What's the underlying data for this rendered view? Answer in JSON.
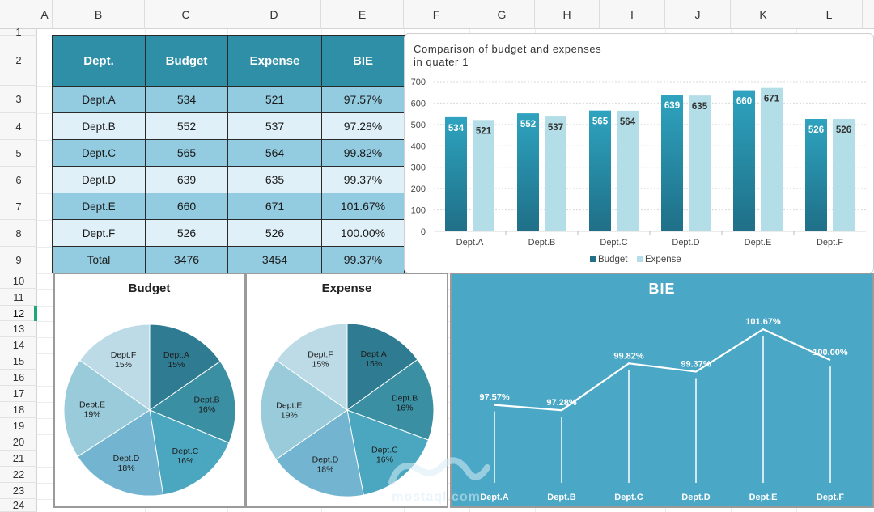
{
  "sheet": {
    "columns": [
      "A",
      "B",
      "C",
      "D",
      "E",
      "F",
      "G",
      "H",
      "I",
      "J",
      "K",
      "L"
    ],
    "rows": [
      "1",
      "2",
      "3",
      "4",
      "5",
      "6",
      "7",
      "8",
      "9",
      "10",
      "11",
      "12",
      "13",
      "14",
      "15",
      "16",
      "17",
      "18",
      "19",
      "20",
      "21",
      "22",
      "23",
      "24"
    ],
    "active_row": "12"
  },
  "table": {
    "headers": [
      "Dept.",
      "Budget",
      "Expense",
      "BIE"
    ],
    "rows": [
      {
        "dept": "Dept.A",
        "budget": "534",
        "expense": "521",
        "bie": "97.57%"
      },
      {
        "dept": "Dept.B",
        "budget": "552",
        "expense": "537",
        "bie": "97.28%"
      },
      {
        "dept": "Dept.C",
        "budget": "565",
        "expense": "564",
        "bie": "99.82%"
      },
      {
        "dept": "Dept.D",
        "budget": "639",
        "expense": "635",
        "bie": "99.37%"
      },
      {
        "dept": "Dept.E",
        "budget": "660",
        "expense": "671",
        "bie": "101.67%"
      },
      {
        "dept": "Dept.F",
        "budget": "526",
        "expense": "526",
        "bie": "100.00%"
      }
    ],
    "total": {
      "dept": "Total",
      "budget": "3476",
      "expense": "3454",
      "bie": "99.37%"
    }
  },
  "chart_data": [
    {
      "type": "bar",
      "title": "Comparison of budget and expenses\nin quater 1",
      "categories": [
        "Dept.A",
        "Dept.B",
        "Dept.C",
        "Dept.D",
        "Dept.E",
        "Dept.F"
      ],
      "series": [
        {
          "name": "Budget",
          "values": [
            534,
            552,
            565,
            639,
            660,
            526
          ],
          "color": "#2a8aa3"
        },
        {
          "name": "Expense",
          "values": [
            521,
            537,
            564,
            635,
            671,
            526
          ],
          "color": "#b3dde7"
        }
      ],
      "ylim": [
        0,
        700
      ],
      "yticks": [
        0,
        100,
        200,
        300,
        400,
        500,
        600,
        700
      ],
      "grid": true,
      "legend": "bottom"
    },
    {
      "type": "pie",
      "title": "Budget",
      "labels": [
        "Dept.A",
        "Dept.B",
        "Dept.C",
        "Dept.D",
        "Dept.E",
        "Dept.F"
      ],
      "values": [
        534,
        552,
        565,
        639,
        660,
        526
      ],
      "percent_labels": [
        "15%",
        "16%",
        "16%",
        "18%",
        "19%",
        "15%"
      ],
      "colors": [
        "#2f7b91",
        "#3a8fa3",
        "#4ba7c0",
        "#73b5d0",
        "#9acbda",
        "#bcdbe6"
      ]
    },
    {
      "type": "pie",
      "title": "Expense",
      "labels": [
        "Dept.A",
        "Dept.B",
        "Dept.C",
        "Dept.D",
        "Dept.E",
        "Dept.F"
      ],
      "values": [
        521,
        537,
        564,
        635,
        671,
        526
      ],
      "percent_labels": [
        "15%",
        "16%",
        "16%",
        "18%",
        "19%",
        "15%"
      ],
      "colors": [
        "#2f7b91",
        "#3a8fa3",
        "#4ba7c0",
        "#73b5d0",
        "#9acbda",
        "#bcdbe6"
      ]
    },
    {
      "type": "line",
      "title": "BIE",
      "categories": [
        "Dept.A",
        "Dept.B",
        "Dept.C",
        "Dept.D",
        "Dept.E",
        "Dept.F"
      ],
      "values": [
        97.57,
        97.28,
        99.82,
        99.37,
        101.67,
        100.0
      ],
      "value_labels": [
        "97.57%",
        "97.28%",
        "99.82%",
        "99.37%",
        "101.67%",
        "100.00%"
      ],
      "ylim": [
        96.5,
        102.2
      ],
      "background": "#4ba7c6"
    }
  ],
  "watermark": {
    "brand": "mostaql.com"
  }
}
